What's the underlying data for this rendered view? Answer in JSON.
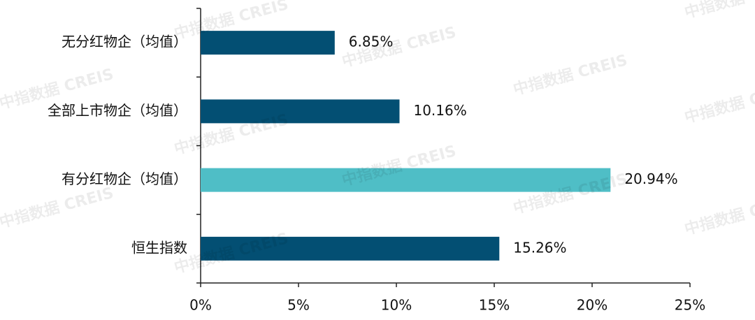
{
  "chart_data": {
    "type": "hbar",
    "watermark": "中指数据 CREIS",
    "categories": [
      "无分红物企（均值）",
      "全部上市物企（均值）",
      "有分红物企（均值）",
      "恒生指数"
    ],
    "values": [
      6.85,
      10.16,
      20.94,
      15.26
    ],
    "value_labels": [
      "6.85%",
      "10.16%",
      "20.94%",
      "15.26%"
    ],
    "colors": [
      "#034f73",
      "#034f73",
      "#4fbec6",
      "#034f73"
    ],
    "xlim": [
      0,
      25
    ],
    "xticks": [
      {
        "value": 0,
        "label": "0%"
      },
      {
        "value": 5,
        "label": "5%"
      },
      {
        "value": 10,
        "label": "10%"
      },
      {
        "value": 15,
        "label": "15%"
      },
      {
        "value": 20,
        "label": "20%"
      },
      {
        "value": 25,
        "label": "25%"
      }
    ]
  }
}
